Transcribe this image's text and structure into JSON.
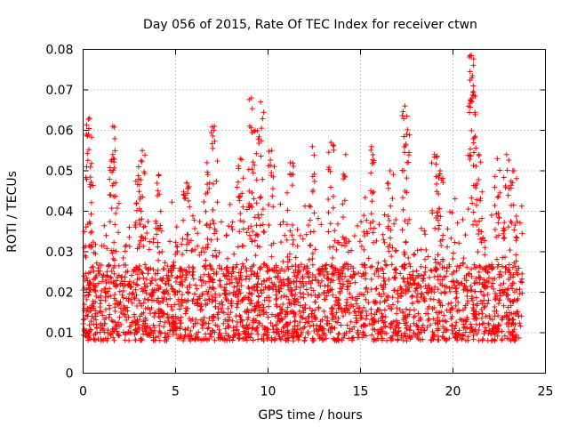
{
  "chart_data": {
    "type": "scatter",
    "title": "Day 056 of 2015, Rate Of TEC Index for receiver ctwn",
    "xlabel": "GPS time / hours",
    "ylabel": "ROTI / TECUs",
    "xlim": [
      0,
      25
    ],
    "ylim": [
      0,
      0.08
    ],
    "x_ticks": [
      0,
      5,
      10,
      15,
      20,
      25
    ],
    "x_tick_labels": [
      "0",
      "5",
      "10",
      "15",
      "20",
      "25"
    ],
    "y_ticks": [
      0,
      0.01,
      0.02,
      0.03,
      0.04,
      0.05,
      0.06,
      0.07,
      0.08
    ],
    "y_tick_labels": [
      "0",
      "0.01",
      "0.02",
      "0.03",
      "0.04",
      "0.05",
      "0.06",
      "0.07",
      "0.08"
    ],
    "grid": true,
    "marker": "+",
    "color": "#ff0000",
    "legend": "none",
    "x_range_data": [
      0,
      23.75
    ],
    "typical_y_range": [
      0.005,
      0.03
    ],
    "peaks": [
      {
        "x": 0.35,
        "y": 0.063
      },
      {
        "x": 0.3,
        "y": 0.059
      },
      {
        "x": 1.6,
        "y": 0.061
      },
      {
        "x": 1.6,
        "y": 0.054
      },
      {
        "x": 3.2,
        "y": 0.055
      },
      {
        "x": 3.0,
        "y": 0.051
      },
      {
        "x": 4.1,
        "y": 0.049
      },
      {
        "x": 5.6,
        "y": 0.047
      },
      {
        "x": 6.7,
        "y": 0.052
      },
      {
        "x": 7.1,
        "y": 0.061
      },
      {
        "x": 8.5,
        "y": 0.053
      },
      {
        "x": 9.1,
        "y": 0.068
      },
      {
        "x": 9.6,
        "y": 0.067
      },
      {
        "x": 9.3,
        "y": 0.06
      },
      {
        "x": 10.2,
        "y": 0.055
      },
      {
        "x": 11.2,
        "y": 0.052
      },
      {
        "x": 12.4,
        "y": 0.056
      },
      {
        "x": 13.4,
        "y": 0.057
      },
      {
        "x": 14.2,
        "y": 0.054
      },
      {
        "x": 15.6,
        "y": 0.056
      },
      {
        "x": 16.6,
        "y": 0.05
      },
      {
        "x": 17.4,
        "y": 0.066
      },
      {
        "x": 17.5,
        "y": 0.059
      },
      {
        "x": 19.0,
        "y": 0.054
      },
      {
        "x": 19.3,
        "y": 0.05
      },
      {
        "x": 21.0,
        "y": 0.0785
      },
      {
        "x": 21.05,
        "y": 0.0735
      },
      {
        "x": 21.1,
        "y": 0.071
      },
      {
        "x": 21.4,
        "y": 0.054
      },
      {
        "x": 22.4,
        "y": 0.053
      },
      {
        "x": 22.9,
        "y": 0.054
      },
      {
        "x": 23.3,
        "y": 0.05
      }
    ]
  }
}
